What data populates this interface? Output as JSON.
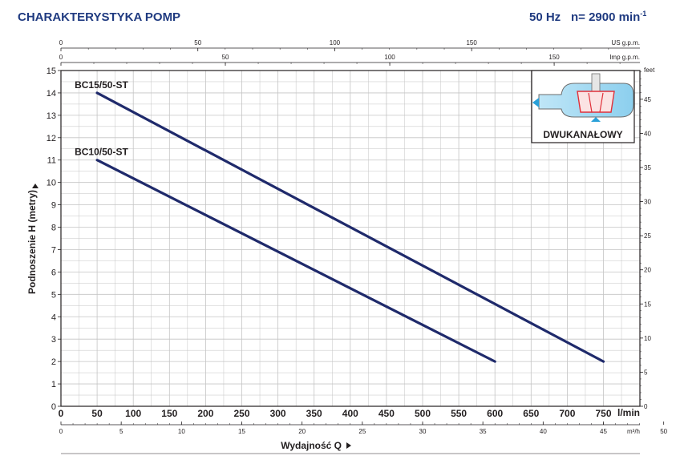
{
  "header": {
    "title": "CHARAKTERYSTYKA POMP",
    "frequency": "50 Hz",
    "speed": "n= 2900 min",
    "speed_exp": "-1"
  },
  "colors": {
    "title": "#1f3a80",
    "curve": "#1f2a6b",
    "grid": "#b8b8b8",
    "frame": "#231f20",
    "impeller": "#e0303a",
    "water": "#2aa0d8"
  },
  "icon": {
    "name": "two-channel-impeller-icon",
    "label": "DWUKANAŁOWY"
  },
  "chart_data": {
    "type": "line",
    "xlabel": "Wydajność Q",
    "ylabel": "Podnoszenie H (metry)",
    "xunit": "l/min",
    "xlim": [
      0,
      800
    ],
    "ylim": [
      0,
      15
    ],
    "x_ticks": [
      0,
      50,
      100,
      150,
      200,
      250,
      300,
      350,
      400,
      450,
      500,
      550,
      600,
      650,
      700,
      750
    ],
    "y_ticks": [
      0,
      1,
      2,
      3,
      4,
      5,
      6,
      7,
      8,
      9,
      10,
      11,
      12,
      13,
      14,
      15
    ],
    "grid": true,
    "series": [
      {
        "name": "BC15/50-ST",
        "x": [
          50,
          750
        ],
        "y": [
          14,
          2
        ]
      },
      {
        "name": "BC10/50-ST",
        "x": [
          50,
          600
        ],
        "y": [
          11,
          2
        ]
      }
    ],
    "secondary_axes": {
      "us_gpm": {
        "unit": "US g.p.m.",
        "ticks": [
          0,
          50,
          100,
          150
        ]
      },
      "imp_gpm": {
        "unit": "Imp g.p.m.",
        "ticks": [
          0,
          50,
          100,
          150
        ]
      },
      "m3h": {
        "unit": "m³/h",
        "ticks": [
          0,
          5,
          10,
          15,
          20,
          25,
          30,
          35,
          40,
          45,
          50
        ]
      },
      "feet": {
        "unit": "feet",
        "ticks": [
          0,
          5,
          10,
          15,
          20,
          25,
          30,
          35,
          40,
          45
        ]
      }
    }
  }
}
